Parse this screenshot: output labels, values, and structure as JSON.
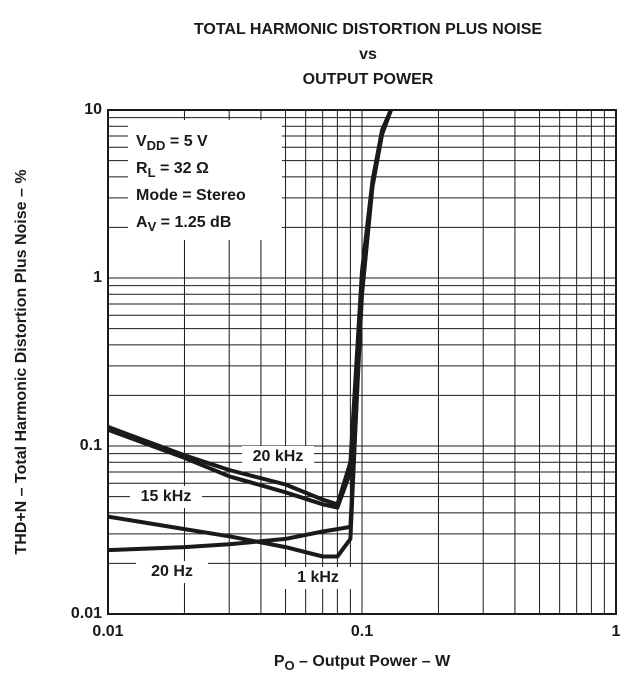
{
  "chart_data": {
    "type": "line",
    "title": [
      "TOTAL HARMONIC DISTORTION PLUS NOISE",
      "vs",
      "OUTPUT POWER"
    ],
    "x_label": {
      "text": "P",
      "sub": "O",
      "rest": " – Output Power – W"
    },
    "y_label": "THD+N – Total Harmonic Distortion Plus Noise – %",
    "annotations": [
      {
        "text": "V",
        "sub": "DD",
        "rest": " = 5 V"
      },
      {
        "text": "R",
        "sub": "L",
        "rest": " = 32 Ω"
      },
      {
        "text": "Mode = Stereo"
      },
      {
        "text": "A",
        "sub": "V",
        "rest": " = 1.25 dB"
      }
    ],
    "log_x": true,
    "log_y": true,
    "grid": true,
    "xlim": [
      0.01,
      1
    ],
    "xticks": [
      0.01,
      0.1,
      1
    ],
    "ylim": [
      0.01,
      10
    ],
    "yticks": [
      0.01,
      0.1,
      1,
      10
    ],
    "x": [
      0.01,
      0.02,
      0.03,
      0.05,
      0.07,
      0.08,
      0.09,
      0.1,
      0.11,
      0.12,
      0.13
    ],
    "series": [
      {
        "name": "20 kHz",
        "color": "#1a1a1a",
        "values": [
          0.13,
          0.088,
          0.072,
          0.059,
          0.048,
          0.045,
          0.08,
          1.1,
          3.8,
          7.6,
          10
        ]
      },
      {
        "name": "15 kHz",
        "color": "#1a1a1a",
        "values": [
          0.125,
          0.085,
          0.066,
          0.053,
          0.045,
          0.043,
          0.07,
          1.0,
          3.6,
          7.2,
          10
        ]
      },
      {
        "name": "1 kHz",
        "color": "#1a1a1a",
        "values": [
          0.038,
          0.032,
          0.029,
          0.025,
          0.022,
          0.022,
          0.028,
          0.95,
          3.6,
          7.3,
          10
        ]
      },
      {
        "name": "20 Hz",
        "color": "#1a1a1a",
        "values": [
          0.024,
          0.025,
          0.026,
          0.028,
          0.031,
          0.032,
          0.033,
          0.8,
          3.5,
          7.2,
          10
        ]
      }
    ]
  }
}
